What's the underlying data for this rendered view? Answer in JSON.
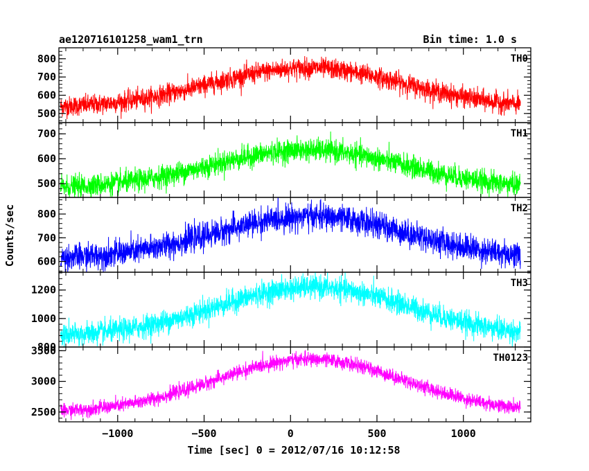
{
  "header": {
    "title": "ae120716101258_wam1_trn",
    "bin_time": "Bin time: 1.0 s"
  },
  "chart_data": {
    "type": "line",
    "xlabel": "Time [sec] 0 = 2012/07/16 10:12:58",
    "ylabel": "Counts/sec",
    "xlim": [
      -1340,
      1390
    ],
    "data_range": [
      -1330,
      1330
    ],
    "x_ticks": [
      -1000,
      -500,
      0,
      500,
      1000
    ],
    "x_tick_labels": [
      "−1000",
      "−500",
      "0",
      "500",
      "1000"
    ],
    "panels": [
      {
        "name": "TH0",
        "color": "#ff0000",
        "ylim": [
          450,
          860
        ],
        "yticks": [
          500,
          600,
          700,
          800
        ],
        "ytick_labels": [
          "500",
          "600",
          "700",
          "800"
        ],
        "baseline": 530,
        "peak": 750,
        "peak_time": 100,
        "width": 560,
        "noise": 27
      },
      {
        "name": "TH1",
        "color": "#00ff00",
        "ylim": [
          445,
          745
        ],
        "yticks": [
          500,
          600,
          700
        ],
        "ytick_labels": [
          "500",
          "600",
          "700"
        ],
        "baseline": 480,
        "peak": 635,
        "peak_time": 100,
        "width": 560,
        "noise": 22
      },
      {
        "name": "TH2",
        "color": "#0000ff",
        "ylim": [
          555,
          870
        ],
        "yticks": [
          600,
          700,
          800
        ],
        "ytick_labels": [
          "600",
          "700",
          "800"
        ],
        "baseline": 610,
        "peak": 790,
        "peak_time": 120,
        "width": 560,
        "noise": 27
      },
      {
        "name": "TH3",
        "color": "#00ffff",
        "ylim": [
          800,
          1325
        ],
        "yticks": [
          800,
          1000,
          1200
        ],
        "ytick_labels": [
          "800",
          "1000",
          "1200"
        ],
        "baseline": 870,
        "peak": 1220,
        "peak_time": 130,
        "width": 560,
        "noise": 40
      },
      {
        "name": "TH0123",
        "color": "#ff00ff",
        "ylim": [
          2340,
          3560
        ],
        "yticks": [
          2500,
          3000,
          3500
        ],
        "ytick_labels": [
          "2500",
          "3000",
          "3500"
        ],
        "baseline": 2490,
        "peak": 3360,
        "peak_time": 110,
        "width": 550,
        "noise": 55
      }
    ]
  }
}
